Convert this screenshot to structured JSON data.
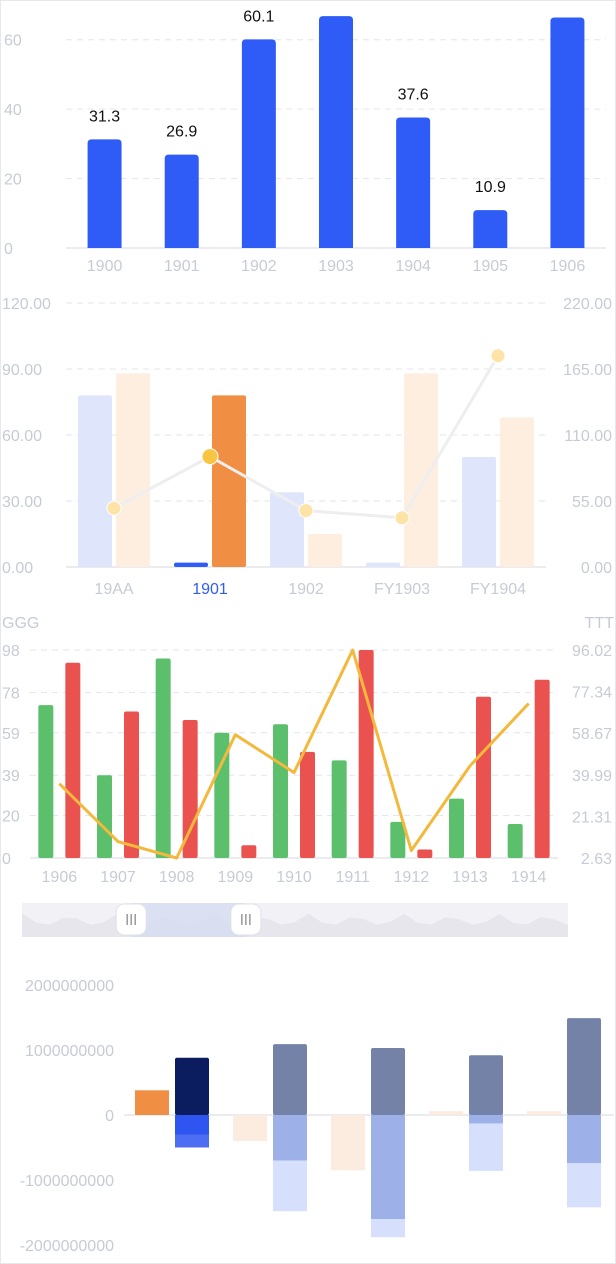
{
  "chart_data": [
    {
      "type": "bar",
      "categories": [
        "1900",
        "1901",
        "1902",
        "1903",
        "1904",
        "1905",
        "1906"
      ],
      "values": [
        31.3,
        26.9,
        60.1,
        66.8,
        37.6,
        10.9,
        66.4
      ],
      "y_ticks": [
        "0",
        "20",
        "40",
        "60"
      ],
      "ylim": [
        0,
        70
      ],
      "grid": true,
      "colors": {
        "bar": "#2f5cf6",
        "axis_text": "#c7cbd6",
        "grid": "#e3e6ee"
      }
    },
    {
      "type": "bar",
      "categories": [
        "19AA",
        "1901",
        "1902",
        "FY1903",
        "FY1904"
      ],
      "highlight_category": "1901",
      "left_ticks": [
        "0.00",
        "30.00",
        "60.00",
        "90.00",
        "120.00"
      ],
      "right_ticks": [
        "0.00",
        "55.00",
        "110.00",
        "165.00",
        "220.00"
      ],
      "ylim_left": [
        0,
        120
      ],
      "ylim_right": [
        0,
        220
      ],
      "series": [
        {
          "type": "bar",
          "axis": "left",
          "values": [
            78,
            2,
            34,
            2,
            50
          ]
        },
        {
          "type": "bar",
          "axis": "left",
          "values": [
            88,
            78,
            15,
            88,
            68
          ]
        },
        {
          "type": "line",
          "axis": "right",
          "values": [
            49,
            92,
            47,
            41,
            176
          ]
        }
      ],
      "colors": {
        "bar1": "#dfe5fb",
        "bar1_active": "#2f5cf6",
        "bar2": "#fdeee0",
        "bar2_active": "#f08f43",
        "line": "#eeeeee",
        "dot": "#fde3a6",
        "dot_active": "#f8c542",
        "highlight_text": "#2f5cf6"
      }
    },
    {
      "type": "bar",
      "left_axis_name": "GGG",
      "right_axis_name": "TTT",
      "categories": [
        "1906",
        "1907",
        "1908",
        "1909",
        "1910",
        "1911",
        "1912",
        "1913",
        "1914"
      ],
      "left_ticks": [
        "0",
        "20",
        "39",
        "59",
        "78",
        "98"
      ],
      "right_ticks": [
        "2.63",
        "21.31",
        "39.99",
        "58.67",
        "77.34",
        "96.02"
      ],
      "ylim_left": [
        0,
        98
      ],
      "ylim_right": [
        2.63,
        96.02
      ],
      "series": [
        {
          "type": "bar",
          "axis": "left",
          "color": "#5cbf6b",
          "values": [
            72,
            39,
            94,
            59,
            63,
            46,
            17,
            28,
            16
          ]
        },
        {
          "type": "bar",
          "axis": "left",
          "color": "#e9524e",
          "values": [
            92,
            69,
            65,
            6,
            50,
            98,
            4,
            76,
            84
          ]
        },
        {
          "type": "line",
          "axis": "right",
          "color": "#f3b83c",
          "values": [
            36,
            10,
            2.63,
            58,
            41,
            96,
            6,
            44,
            72
          ]
        }
      ],
      "data_zoom": {
        "start": 0.2,
        "end": 0.41
      }
    },
    {
      "type": "bar",
      "stacked": true,
      "y_ticks": [
        "-2000000000",
        "-1000000000",
        "0",
        "1000000000",
        "2000000000"
      ],
      "ylim": [
        -2000000000,
        2000000000
      ],
      "groups": [
        {
          "a_val": 380000000,
          "b_pos": 880000000,
          "b_neg1": -300000000,
          "b_neg2": -500000000
        },
        {
          "a_val": -400000000,
          "b_pos": 1090000000,
          "b_neg1": -700000000,
          "b_neg2": -1480000000
        },
        {
          "a_val": -850000000,
          "b_pos": 1030000000,
          "b_neg1": -1600000000,
          "b_neg2": -1880000000
        },
        {
          "a_val": 60000000,
          "b_pos": 920000000,
          "b_neg1": -130000000,
          "b_neg2": -860000000
        },
        {
          "a_val": 60000000,
          "b_pos": 1490000000,
          "b_neg1": -740000000,
          "b_neg2": -1420000000
        }
      ],
      "colors": {
        "a_active": "#f08f43",
        "a": "#fcece0",
        "b_pos_active": "#0b1d5e",
        "b_pos": "#7482a8",
        "b_neg1_active": "#2e55f0",
        "b_neg1": "#9eb0e8",
        "b_neg2_active": "#2e55f0",
        "b_neg2": "#d6dffb"
      },
      "active_group": 0
    }
  ]
}
